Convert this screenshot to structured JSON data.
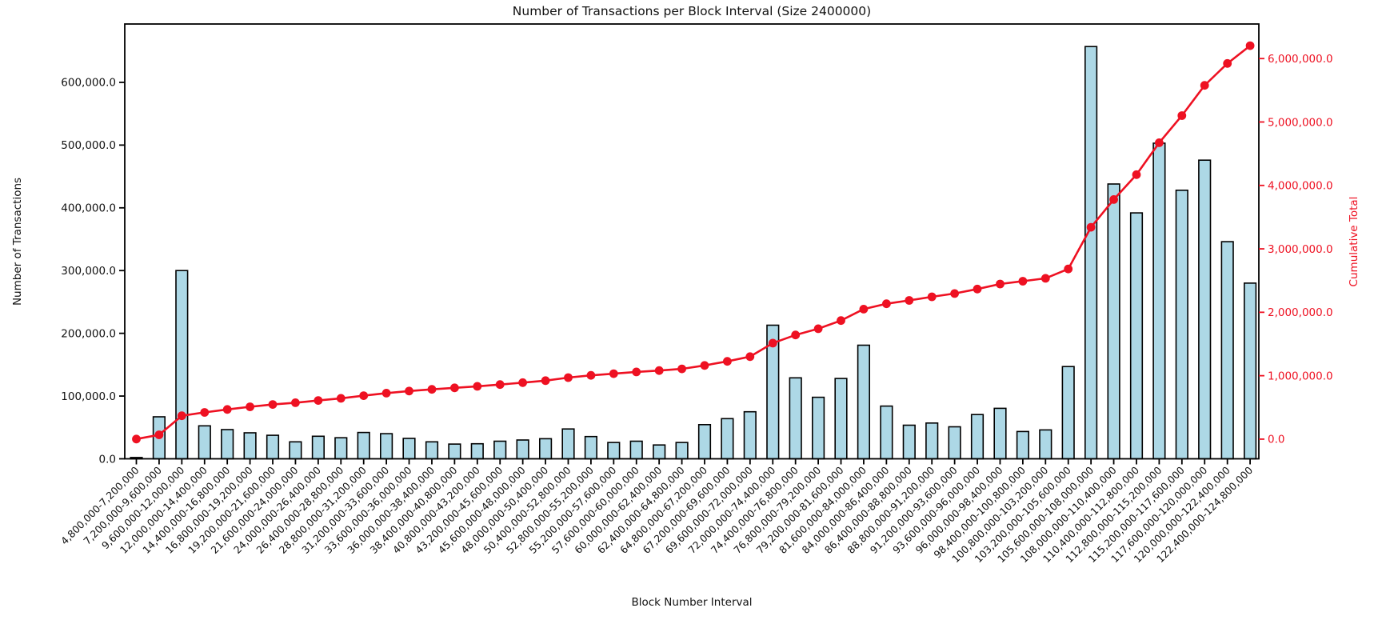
{
  "chart_data": {
    "type": "bar",
    "title": "Number of Transactions per Block Interval (Size 2400000)",
    "xlabel": "Block Number Interval",
    "grid": false,
    "legend": "none",
    "bar_color": "#add8e6",
    "bar_edge_color": "#000000",
    "line_color": "#ee1122",
    "categories": [
      "4,800,000-7,200,000",
      "7,200,000-9,600,000",
      "9,600,000-12,000,000",
      "12,000,000-14,400,000",
      "14,400,000-16,800,000",
      "16,800,000-19,200,000",
      "19,200,000-21,600,000",
      "21,600,000-24,000,000",
      "24,000,000-26,400,000",
      "26,400,000-28,800,000",
      "28,800,000-31,200,000",
      "31,200,000-33,600,000",
      "33,600,000-36,000,000",
      "36,000,000-38,400,000",
      "38,400,000-40,800,000",
      "40,800,000-43,200,000",
      "43,200,000-45,600,000",
      "45,600,000-48,000,000",
      "48,000,000-50,400,000",
      "50,400,000-52,800,000",
      "52,800,000-55,200,000",
      "55,200,000-57,600,000",
      "57,600,000-60,000,000",
      "60,000,000-62,400,000",
      "62,400,000-64,800,000",
      "64,800,000-67,200,000",
      "67,200,000-69,600,000",
      "69,600,000-72,000,000",
      "72,000,000-74,400,000",
      "74,400,000-76,800,000",
      "76,800,000-79,200,000",
      "79,200,000-81,600,000",
      "81,600,000-84,000,000",
      "84,000,000-86,400,000",
      "86,400,000-88,800,000",
      "88,800,000-91,200,000",
      "91,200,000-93,600,000",
      "93,600,000-96,000,000",
      "96,000,000-98,400,000",
      "98,400,000-100,800,000",
      "100,800,000-103,200,000",
      "103,200,000-105,600,000",
      "105,600,000-108,000,000",
      "108,000,000-110,400,000",
      "110,400,000-112,800,000",
      "112,800,000-115,200,000",
      "115,200,000-117,600,000",
      "117,600,000-120,000,000",
      "120,000,000-122,400,000",
      "122,400,000-124,800,000"
    ],
    "series": [
      {
        "name": "Number of Transactions",
        "type": "bar",
        "axis": "left",
        "values": [
          2000,
          67000,
          300000,
          52500,
          46500,
          41500,
          37500,
          27000,
          36000,
          33500,
          42000,
          40000,
          32500,
          27000,
          23500,
          24000,
          28000,
          30000,
          32000,
          47500,
          35500,
          26000,
          28000,
          22000,
          26000,
          54500,
          64000,
          75000,
          213000,
          129000,
          98000,
          128000,
          181000,
          84000,
          53500,
          57000,
          51000,
          70500,
          80500,
          43500,
          46000,
          147000,
          657000,
          438000,
          392000,
          503000,
          428000,
          476000,
          346000,
          280000
        ]
      },
      {
        "name": "Cumulative Total",
        "type": "line",
        "axis": "right",
        "values": [
          2000,
          69000,
          369000,
          421500,
          468000,
          509500,
          547000,
          574000,
          610000,
          643500,
          685500,
          725500,
          758000,
          785000,
          808500,
          832500,
          860500,
          890500,
          922500,
          970000,
          1005500,
          1031500,
          1059500,
          1081500,
          1107500,
          1162000,
          1226000,
          1301000,
          1514000,
          1643000,
          1741000,
          1869000,
          2050000,
          2134000,
          2187500,
          2244500,
          2295500,
          2366000,
          2446500,
          2490000,
          2536000,
          2683000,
          3340000,
          3778000,
          4170000,
          4673000,
          5101000,
          5577000,
          5923000,
          6203000
        ]
      }
    ],
    "left_axis": {
      "label": "Number of Transactions",
      "color": "#111111",
      "ylim": [
        0,
        693000
      ],
      "tick_values": [
        0,
        100000,
        200000,
        300000,
        400000,
        500000,
        600000
      ],
      "tick_labels": [
        "0.0",
        "100,000.0",
        "200,000.0",
        "300,000.0",
        "400,000.0",
        "500,000.0",
        "600,000.0"
      ]
    },
    "right_axis": {
      "label": "Cumulative Total",
      "color": "#ee1122",
      "ylim": [
        -310000,
        6545000
      ],
      "tick_values": [
        0,
        1000000,
        2000000,
        3000000,
        4000000,
        5000000,
        6000000
      ],
      "tick_labels": [
        "0.0",
        "1,000,000.0",
        "2,000,000.0",
        "3,000,000.0",
        "4,000,000.0",
        "5,000,000.0",
        "6,000,000.0"
      ]
    }
  }
}
